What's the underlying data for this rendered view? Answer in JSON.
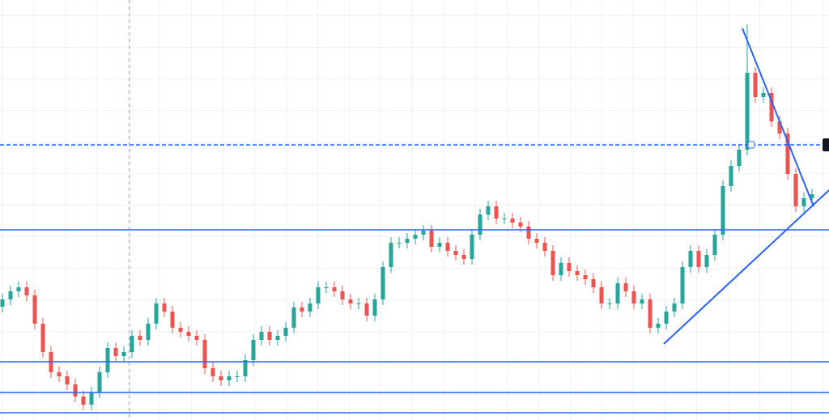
{
  "chart_data": {
    "type": "candlestick",
    "up_color": "#26a69a",
    "down_color": "#ef5350",
    "line_color": "#2962ff",
    "xlim": [
      -0.3,
      102.1
    ],
    "ylim": [
      0,
      519
    ],
    "grid": true,
    "open": [
      140,
      149,
      159,
      164,
      154,
      119,
      84,
      59,
      54,
      44,
      29,
      19,
      34,
      59,
      89,
      79,
      84,
      104,
      99,
      119,
      144,
      134,
      114,
      109,
      104,
      99,
      64,
      54,
      49,
      54,
      54,
      74,
      99,
      109,
      99,
      104,
      114,
      139,
      134,
      144,
      164,
      164,
      159,
      149,
      144,
      144,
      129,
      149,
      189,
      219,
      219,
      224,
      229,
      234,
      214,
      219,
      209,
      204,
      199,
      229,
      254,
      264,
      249,
      249,
      244,
      239,
      224,
      219,
      209,
      179,
      194,
      184,
      179,
      174,
      164,
      144,
      144,
      169,
      159,
      144,
      149,
      114,
      119,
      134,
      144,
      189,
      209,
      189,
      204,
      229,
      289,
      314,
      334,
      429,
      399,
      404,
      369,
      354,
      304,
      264,
      274
    ],
    "high": [
      156,
      166,
      171,
      171,
      161,
      126,
      91,
      66,
      61,
      51,
      36,
      41,
      66,
      96,
      96,
      91,
      111,
      111,
      126,
      151,
      151,
      141,
      121,
      116,
      111,
      106,
      71,
      61,
      61,
      61,
      81,
      106,
      116,
      116,
      111,
      121,
      146,
      146,
      151,
      171,
      171,
      171,
      166,
      156,
      151,
      151,
      156,
      196,
      226,
      226,
      231,
      236,
      241,
      241,
      226,
      226,
      216,
      211,
      236,
      261,
      271,
      271,
      256,
      256,
      251,
      246,
      231,
      226,
      216,
      201,
      201,
      191,
      186,
      181,
      171,
      151,
      176,
      176,
      166,
      156,
      156,
      126,
      141,
      151,
      196,
      216,
      216,
      211,
      236,
      296,
      321,
      341,
      489,
      436,
      411,
      411,
      376,
      361,
      311,
      281,
      286
    ],
    "low": [
      133,
      142,
      152,
      147,
      112,
      77,
      52,
      47,
      37,
      22,
      12,
      12,
      27,
      52,
      72,
      72,
      77,
      92,
      92,
      112,
      127,
      107,
      102,
      97,
      92,
      57,
      47,
      42,
      42,
      47,
      47,
      67,
      92,
      92,
      92,
      97,
      107,
      127,
      127,
      137,
      157,
      152,
      142,
      137,
      137,
      122,
      122,
      142,
      182,
      212,
      212,
      217,
      222,
      207,
      207,
      202,
      197,
      192,
      192,
      222,
      247,
      242,
      242,
      237,
      232,
      217,
      212,
      202,
      172,
      172,
      177,
      172,
      167,
      157,
      137,
      137,
      137,
      152,
      137,
      137,
      107,
      107,
      112,
      127,
      137,
      182,
      182,
      182,
      197,
      222,
      282,
      307,
      327,
      392,
      392,
      362,
      347,
      297,
      257,
      257,
      267
    ],
    "close": [
      149,
      159,
      164,
      154,
      119,
      84,
      59,
      54,
      44,
      29,
      19,
      34,
      59,
      89,
      79,
      84,
      104,
      99,
      119,
      144,
      134,
      114,
      109,
      104,
      99,
      64,
      54,
      49,
      54,
      54,
      74,
      99,
      109,
      99,
      104,
      114,
      139,
      134,
      144,
      164,
      164,
      159,
      149,
      144,
      144,
      129,
      149,
      189,
      219,
      219,
      224,
      229,
      234,
      214,
      219,
      209,
      204,
      199,
      229,
      254,
      264,
      249,
      249,
      244,
      239,
      224,
      219,
      209,
      179,
      194,
      184,
      179,
      174,
      164,
      144,
      144,
      169,
      159,
      144,
      149,
      114,
      119,
      134,
      144,
      189,
      209,
      189,
      204,
      229,
      289,
      314,
      334,
      429,
      399,
      404,
      369,
      354,
      304,
      264,
      274,
      279
    ],
    "hlines": [
      {
        "value": 340,
        "style": "dashed"
      },
      {
        "value": 235,
        "style": "solid"
      },
      {
        "value": 72,
        "style": "solid"
      },
      {
        "value": 34,
        "style": "solid"
      },
      {
        "value": 9,
        "style": "solid"
      }
    ],
    "trendlines": [
      {
        "x": [
          81.7,
          102.1
        ],
        "y": [
          94,
          284
        ]
      },
      {
        "x": [
          91.4,
          100.2
        ],
        "y": [
          484,
          264
        ]
      }
    ],
    "crosshair_x": 15.7
  }
}
